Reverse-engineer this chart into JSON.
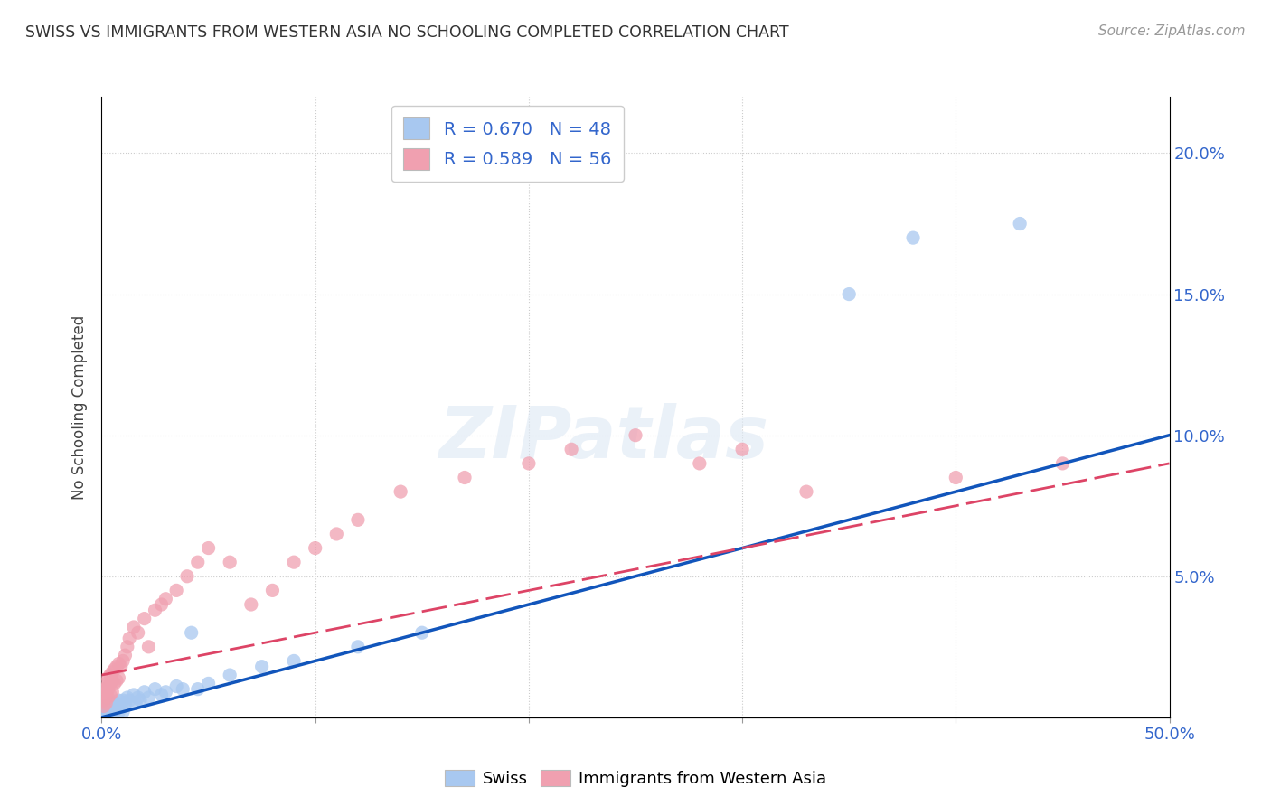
{
  "title": "SWISS VS IMMIGRANTS FROM WESTERN ASIA NO SCHOOLING COMPLETED CORRELATION CHART",
  "source": "Source: ZipAtlas.com",
  "ylabel": "No Schooling Completed",
  "xlim": [
    0.0,
    0.5
  ],
  "ylim": [
    0.0,
    0.22
  ],
  "swiss_color": "#a8c8f0",
  "immigrant_color": "#f0a0b0",
  "swiss_line_color": "#1155bb",
  "immigrant_line_color": "#dd4466",
  "R_swiss": 0.67,
  "N_swiss": 48,
  "R_immigrant": 0.589,
  "N_immigrant": 56,
  "legend_label_swiss": "Swiss",
  "legend_label_immigrant": "Immigrants from Western Asia",
  "watermark": "ZIPatlas",
  "background_color": "#ffffff",
  "grid_color": "#cccccc",
  "swiss_x": [
    0.001,
    0.001,
    0.001,
    0.002,
    0.002,
    0.002,
    0.003,
    0.003,
    0.003,
    0.004,
    0.004,
    0.005,
    0.005,
    0.005,
    0.006,
    0.006,
    0.007,
    0.007,
    0.008,
    0.008,
    0.009,
    0.01,
    0.01,
    0.011,
    0.012,
    0.013,
    0.015,
    0.016,
    0.017,
    0.018,
    0.02,
    0.022,
    0.025,
    0.028,
    0.03,
    0.035,
    0.038,
    0.042,
    0.045,
    0.05,
    0.06,
    0.075,
    0.09,
    0.12,
    0.15,
    0.35,
    0.38,
    0.43
  ],
  "swiss_y": [
    0.003,
    0.002,
    0.001,
    0.004,
    0.002,
    0.001,
    0.003,
    0.002,
    0.001,
    0.004,
    0.002,
    0.005,
    0.003,
    0.001,
    0.004,
    0.002,
    0.005,
    0.003,
    0.006,
    0.002,
    0.004,
    0.006,
    0.002,
    0.005,
    0.007,
    0.006,
    0.008,
    0.005,
    0.007,
    0.006,
    0.009,
    0.007,
    0.01,
    0.008,
    0.009,
    0.011,
    0.01,
    0.03,
    0.01,
    0.012,
    0.015,
    0.018,
    0.02,
    0.025,
    0.03,
    0.15,
    0.17,
    0.175
  ],
  "imm_x": [
    0.001,
    0.001,
    0.001,
    0.001,
    0.002,
    0.002,
    0.002,
    0.002,
    0.003,
    0.003,
    0.003,
    0.004,
    0.004,
    0.004,
    0.005,
    0.005,
    0.005,
    0.006,
    0.006,
    0.007,
    0.007,
    0.008,
    0.008,
    0.009,
    0.01,
    0.011,
    0.012,
    0.013,
    0.015,
    0.017,
    0.02,
    0.022,
    0.025,
    0.028,
    0.03,
    0.035,
    0.04,
    0.045,
    0.05,
    0.06,
    0.07,
    0.08,
    0.09,
    0.1,
    0.11,
    0.12,
    0.14,
    0.17,
    0.2,
    0.22,
    0.25,
    0.28,
    0.3,
    0.33,
    0.4,
    0.45
  ],
  "imm_y": [
    0.01,
    0.008,
    0.006,
    0.004,
    0.012,
    0.01,
    0.008,
    0.005,
    0.014,
    0.01,
    0.007,
    0.015,
    0.012,
    0.008,
    0.016,
    0.013,
    0.009,
    0.017,
    0.012,
    0.018,
    0.013,
    0.019,
    0.014,
    0.018,
    0.02,
    0.022,
    0.025,
    0.028,
    0.032,
    0.03,
    0.035,
    0.025,
    0.038,
    0.04,
    0.042,
    0.045,
    0.05,
    0.055,
    0.06,
    0.055,
    0.04,
    0.045,
    0.055,
    0.06,
    0.065,
    0.07,
    0.08,
    0.085,
    0.09,
    0.095,
    0.1,
    0.09,
    0.095,
    0.08,
    0.085,
    0.09
  ]
}
